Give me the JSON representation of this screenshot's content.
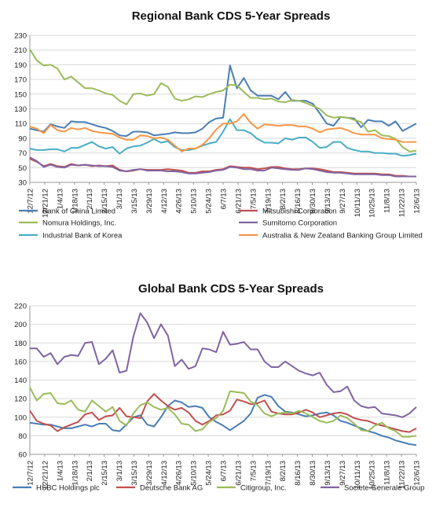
{
  "chart_data": [
    {
      "type": "line",
      "title": "Regional Bank CDS 5-Year Spreads",
      "xlabel": "",
      "ylabel": "",
      "ylim": [
        30,
        230
      ],
      "yticks": [
        30,
        50,
        70,
        90,
        110,
        130,
        150,
        170,
        190,
        210,
        230
      ],
      "x_tick_labels": [
        "12/7/12",
        "12/21/12",
        "1/4/13",
        "1/18/13",
        "2/1/13",
        "2/15/13",
        "3/1/13",
        "3/15/13",
        "3/29/13",
        "4/12/13",
        "4/26/13",
        "5/10/13",
        "5/24/13",
        "6/7/13",
        "6/21/13",
        "7/5/13",
        "7/19/13",
        "8/2/13",
        "8/16/13",
        "8/30/13",
        "9/13/13",
        "9/27/13",
        "10/11/13",
        "10/25/13",
        "11/8/13",
        "11/22/13",
        "12/6/13"
      ],
      "grid": true,
      "legend_position": "bottom",
      "series": [
        {
          "name": "Bank of China Limited",
          "color": "#4a7eb4",
          "values": [
            103,
            101,
            99,
            109,
            106,
            104,
            113,
            112,
            112,
            109,
            106,
            104,
            100,
            94,
            93,
            99,
            99,
            98,
            94,
            95,
            96,
            98,
            97,
            97,
            98,
            103,
            112,
            117,
            118,
            189,
            158,
            172,
            155,
            148,
            148,
            148,
            143,
            153,
            141,
            141,
            141,
            137,
            124,
            110,
            107,
            119,
            118,
            117,
            105,
            115,
            113,
            113,
            107,
            113,
            100,
            105,
            110
          ]
        },
        {
          "name": "Mitsubishi Corporation",
          "color": "#c0504d",
          "values": [
            62,
            58,
            52,
            55,
            52,
            51,
            55,
            53,
            54,
            52,
            53,
            52,
            53,
            47,
            45,
            46,
            48,
            47,
            47,
            47,
            48,
            47,
            46,
            43,
            43,
            45,
            45,
            47,
            48,
            52,
            51,
            50,
            50,
            48,
            49,
            51,
            51,
            49,
            48,
            48,
            49,
            49,
            48,
            46,
            44,
            44,
            43,
            42,
            42,
            42,
            42,
            41,
            41,
            39,
            39,
            38,
            38
          ]
        },
        {
          "name": "Nomura Holdings, Inc.",
          "color": "#9bbb59",
          "values": [
            211,
            196,
            189,
            190,
            185,
            170,
            174,
            166,
            158,
            158,
            155,
            151,
            149,
            141,
            136,
            150,
            151,
            148,
            150,
            165,
            160,
            144,
            141,
            143,
            147,
            146,
            150,
            153,
            155,
            163,
            162,
            153,
            145,
            145,
            143,
            144,
            140,
            139,
            142,
            141,
            138,
            134,
            130,
            121,
            118,
            119,
            118,
            115,
            112,
            99,
            101,
            94,
            93,
            89,
            78,
            72,
            73
          ]
        },
        {
          "name": "Sumitomo Corporation",
          "color": "#8064a2",
          "values": [
            64,
            59,
            51,
            54,
            51,
            50,
            54,
            53,
            54,
            53,
            52,
            52,
            51,
            46,
            45,
            47,
            48,
            46,
            46,
            46,
            45,
            45,
            44,
            42,
            42,
            43,
            44,
            46,
            47,
            51,
            50,
            48,
            48,
            46,
            46,
            50,
            49,
            48,
            47,
            47,
            49,
            48,
            46,
            44,
            43,
            43,
            42,
            41,
            41,
            41,
            41,
            40,
            40,
            38,
            38,
            38,
            38
          ]
        },
        {
          "name": "Industrial Bank of Korea",
          "color": "#4bacc6",
          "values": [
            76,
            74,
            74,
            75,
            75,
            72,
            77,
            77,
            81,
            85,
            79,
            76,
            78,
            69,
            76,
            79,
            80,
            84,
            89,
            84,
            86,
            78,
            74,
            74,
            76,
            80,
            83,
            85,
            99,
            116,
            101,
            101,
            97,
            89,
            84,
            84,
            83,
            90,
            88,
            91,
            91,
            85,
            77,
            78,
            85,
            85,
            77,
            74,
            72,
            72,
            70,
            70,
            69,
            69,
            66,
            67,
            69
          ]
        },
        {
          "name": "Australia & New Zealand Banking Group Limited",
          "color": "#f79646",
          "values": [
            106,
            103,
            97,
            108,
            101,
            99,
            104,
            102,
            104,
            100,
            98,
            97,
            96,
            91,
            88,
            88,
            94,
            93,
            90,
            91,
            88,
            80,
            72,
            76,
            76,
            81,
            90,
            102,
            110,
            110,
            113,
            123,
            111,
            103,
            109,
            108,
            107,
            108,
            108,
            106,
            106,
            103,
            98,
            102,
            103,
            104,
            101,
            97,
            95,
            95,
            95,
            90,
            89,
            88,
            85,
            85,
            85
          ]
        }
      ]
    },
    {
      "type": "line",
      "title": "Global Bank CDS 5-Year Spreads",
      "xlabel": "",
      "ylabel": "",
      "ylim": [
        60,
        220
      ],
      "yticks": [
        60,
        80,
        100,
        120,
        140,
        160,
        180,
        200,
        220
      ],
      "x_tick_labels": [
        "12/7/12",
        "12/21/12",
        "1/4/13",
        "1/18/13",
        "2/1/13",
        "2/15/13",
        "3/1/13",
        "3/15/13",
        "3/29/13",
        "4/12/13",
        "4/26/13",
        "5/10/13",
        "5/24/13",
        "6/7/13",
        "6/21/13",
        "7/5/13",
        "7/19/13",
        "8/2/13",
        "8/16/13",
        "8/30/13",
        "9/13/13",
        "9/27/13",
        "10/11/13",
        "10/25/13",
        "11/8/13",
        "11/22/13",
        "12/6/13"
      ],
      "grid": true,
      "legend_position": "bottom",
      "series": [
        {
          "name": "HSBC Holdings plc",
          "color": "#4a7eb4",
          "values": [
            94,
            93,
            92,
            92,
            90,
            88,
            88,
            90,
            92,
            90,
            93,
            93,
            86,
            85,
            92,
            100,
            102,
            92,
            90,
            100,
            112,
            118,
            116,
            111,
            112,
            110,
            100,
            95,
            91,
            86,
            91,
            96,
            104,
            121,
            124,
            122,
            112,
            106,
            105,
            103,
            101,
            102,
            104,
            105,
            102,
            96,
            94,
            91,
            88,
            85,
            83,
            80,
            78,
            75,
            73,
            71,
            70
          ]
        },
        {
          "name": "Deutsche Bank AG",
          "color": "#c0504d",
          "values": [
            107,
            96,
            93,
            91,
            85,
            89,
            92,
            95,
            103,
            105,
            97,
            101,
            102,
            110,
            101,
            100,
            99,
            117,
            125,
            118,
            112,
            108,
            110,
            105,
            96,
            92,
            96,
            102,
            103,
            107,
            119,
            117,
            114,
            115,
            118,
            106,
            104,
            103,
            103,
            105,
            108,
            105,
            100,
            102,
            104,
            105,
            103,
            99,
            97,
            96,
            93,
            91,
            89,
            87,
            85,
            84,
            88
          ]
        },
        {
          "name": "Citigroup, Inc.",
          "color": "#9bbb59",
          "values": [
            132,
            118,
            125,
            126,
            115,
            114,
            118,
            108,
            106,
            118,
            112,
            106,
            111,
            96,
            91,
            104,
            113,
            116,
            111,
            108,
            110,
            103,
            93,
            92,
            85,
            87,
            95,
            99,
            107,
            128,
            127,
            126,
            117,
            113,
            104,
            101,
            104,
            105,
            104,
            107,
            104,
            100,
            96,
            94,
            96,
            102,
            99,
            93,
            86,
            85,
            91,
            94,
            88,
            85,
            79,
            79,
            80
          ]
        },
        {
          "name": "Societe Generale Group",
          "color": "#8064a2",
          "values": [
            174,
            174,
            165,
            169,
            157,
            165,
            167,
            166,
            180,
            181,
            157,
            163,
            172,
            148,
            150,
            187,
            212,
            202,
            185,
            200,
            188,
            155,
            162,
            152,
            155,
            174,
            173,
            170,
            192,
            178,
            179,
            181,
            173,
            173,
            160,
            154,
            154,
            160,
            155,
            150,
            147,
            145,
            148,
            135,
            127,
            128,
            133,
            118,
            112,
            110,
            111,
            104,
            103,
            102,
            100,
            104,
            111
          ]
        }
      ]
    }
  ]
}
